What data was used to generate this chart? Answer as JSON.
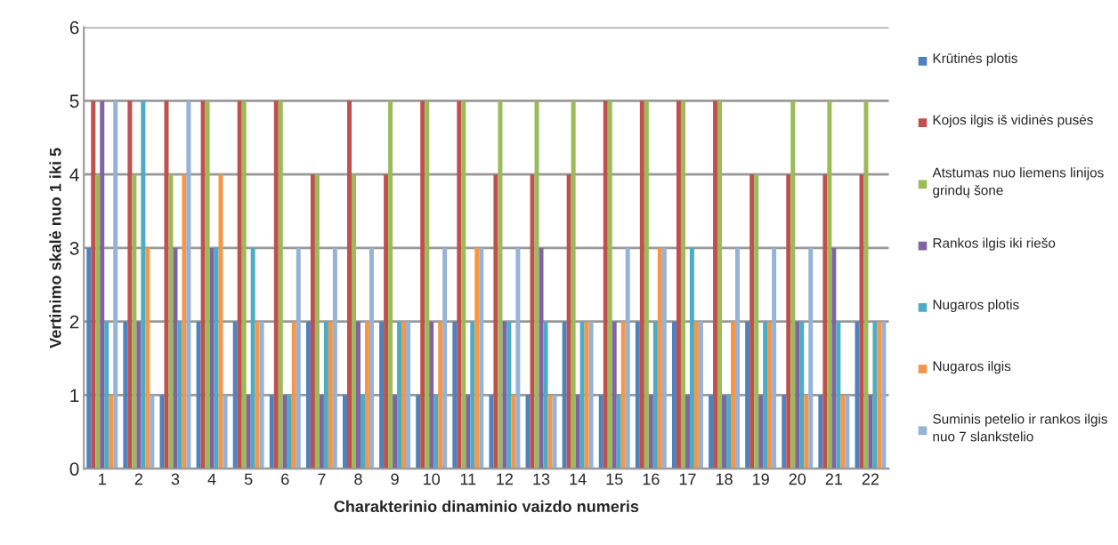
{
  "chart_data": {
    "type": "bar",
    "xlabel": "Charakterinio dinaminio vaizdo numeris",
    "ylabel": "Vertinimo skalė nuo 1 iki 5",
    "categories": [
      "1",
      "2",
      "3",
      "4",
      "5",
      "6",
      "7",
      "8",
      "9",
      "10",
      "11",
      "12",
      "13",
      "14",
      "15",
      "16",
      "17",
      "18",
      "19",
      "20",
      "21",
      "22"
    ],
    "series": [
      {
        "name": "Krūtinės plotis",
        "color": "#4f81bd",
        "values": [
          3,
          2,
          1,
          2,
          2,
          1,
          2,
          1,
          2,
          1,
          2,
          1,
          1,
          2,
          1,
          2,
          2,
          1,
          2,
          1,
          1,
          2
        ]
      },
      {
        "name": "Kojos ilgis iš vidinės pusės",
        "color": "#c0504d",
        "values": [
          5,
          5,
          5,
          5,
          5,
          5,
          4,
          5,
          4,
          5,
          5,
          4,
          4,
          4,
          5,
          5,
          5,
          5,
          4,
          4,
          4,
          4
        ]
      },
      {
        "name": "Atstumas nuo liemens linijos grindų šone",
        "color": "#9bbb59",
        "values": [
          4,
          4,
          4,
          5,
          5,
          5,
          4,
          4,
          5,
          5,
          5,
          5,
          5,
          5,
          5,
          5,
          5,
          5,
          4,
          5,
          5,
          5
        ]
      },
      {
        "name": "Rankos ilgis iki riešo",
        "color": "#8064a2",
        "values": [
          5,
          2,
          3,
          3,
          1,
          1,
          1,
          2,
          1,
          2,
          1,
          2,
          3,
          1,
          2,
          1,
          1,
          1,
          1,
          2,
          3,
          1
        ]
      },
      {
        "name": "Nugaros plotis",
        "color": "#4bacc6",
        "values": [
          2,
          5,
          2,
          3,
          3,
          1,
          2,
          1,
          2,
          1,
          2,
          2,
          2,
          2,
          1,
          2,
          3,
          1,
          2,
          2,
          2,
          2
        ]
      },
      {
        "name": "Nugaros ilgis",
        "color": "#f79646",
        "values": [
          1,
          3,
          4,
          4,
          2,
          2,
          2,
          2,
          2,
          2,
          3,
          1,
          1,
          2,
          2,
          3,
          2,
          2,
          2,
          1,
          1,
          2
        ]
      },
      {
        "name": "Suminis petelio ir rankos ilgis nuo 7 slankstelio",
        "color": "#95b3d7",
        "values": [
          5,
          1,
          5,
          1,
          2,
          3,
          3,
          3,
          2,
          3,
          3,
          3,
          1,
          2,
          3,
          3,
          2,
          3,
          3,
          3,
          1,
          2
        ]
      }
    ],
    "ylim": [
      0,
      6
    ],
    "yticks": [
      0,
      1,
      2,
      3,
      4,
      5,
      6
    ],
    "grid": "y",
    "legend": "right"
  }
}
